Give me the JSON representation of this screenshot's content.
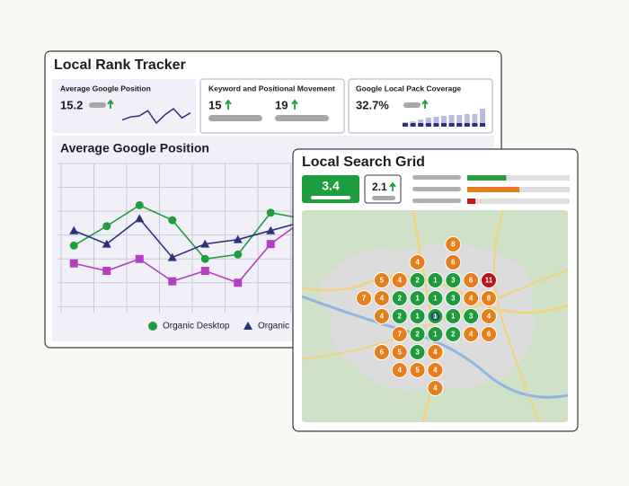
{
  "rank_tracker": {
    "title": "Local Rank Tracker",
    "avg_position": {
      "label": "Average Google Position",
      "value": "15.2",
      "trend": [
        7,
        10,
        11,
        16,
        4,
        12,
        18,
        9,
        14
      ]
    },
    "movement": {
      "label": "Keyword and Positional Movement",
      "up": "15",
      "down": "19"
    },
    "coverage": {
      "label": "Google Local Pack Coverage",
      "value": "32.7%",
      "bars": [
        5,
        6,
        8,
        10,
        11,
        12,
        13,
        13,
        14,
        14,
        20
      ]
    }
  },
  "chart_data": {
    "type": "line",
    "title": "Average Google Position",
    "categories": [
      null,
      null,
      null,
      null,
      null,
      null,
      null,
      null
    ],
    "series": [
      {
        "name": "Organic Desktop",
        "color": "#1e9e3e",
        "marker": "circle",
        "values": [
          45,
          58,
          72,
          62,
          36,
          39,
          67,
          63
        ]
      },
      {
        "name": "Organic",
        "color": "#2b3278",
        "marker": "triangle",
        "values": [
          55,
          46,
          63,
          37,
          46,
          49,
          55,
          61
        ]
      },
      {
        "color": "#b43fc0",
        "marker": "square",
        "values": [
          33,
          28,
          36,
          21,
          28,
          20,
          46,
          62
        ]
      }
    ],
    "ylim": [
      0,
      100
    ],
    "yticks": [
      4,
      20,
      36,
      52,
      68,
      84,
      100
    ],
    "grid": true
  },
  "search_grid": {
    "title": "Local Search Grid",
    "average": "3.4",
    "secondary": "2.1",
    "bars": [
      {
        "color": "#2a9d3f",
        "value": 38
      },
      {
        "color": "#e27c1c",
        "value": 51
      },
      {
        "color": "#c8161d",
        "value": 8
      }
    ],
    "rank_colors": [
      {
        "max": 3,
        "color": "#1f9a3c"
      },
      {
        "max": 10,
        "color": "#e57f1e"
      },
      {
        "color": "#b8141c"
      }
    ],
    "rows": [
      [
        null,
        null,
        null,
        null,
        null,
        8,
        null,
        null
      ],
      [
        null,
        null,
        null,
        4,
        null,
        6,
        null,
        null
      ],
      [
        null,
        5,
        4,
        2,
        1,
        3,
        6,
        11
      ],
      [
        7,
        4,
        2,
        1,
        1,
        3,
        4,
        8
      ],
      [
        null,
        4,
        2,
        1,
        1,
        1,
        3,
        4
      ],
      [
        null,
        null,
        7,
        2,
        1,
        2,
        4,
        6
      ],
      [
        null,
        6,
        5,
        3,
        4,
        null,
        null,
        null
      ],
      [
        null,
        null,
        4,
        5,
        4,
        null,
        null,
        null
      ],
      [
        null,
        null,
        null,
        null,
        4,
        null,
        null,
        null
      ]
    ]
  }
}
